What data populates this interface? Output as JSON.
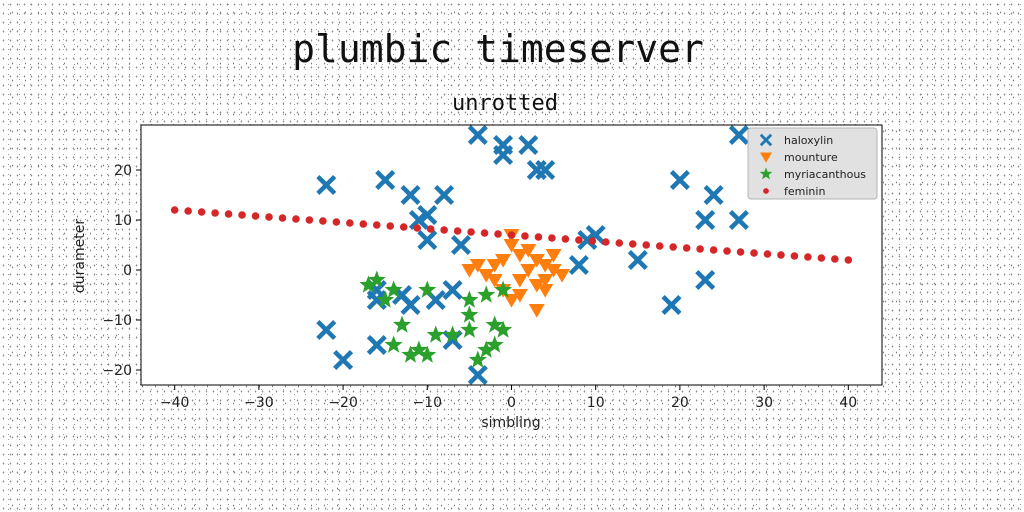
{
  "figure_title": "plumbic timeserver",
  "chart_data": {
    "type": "scatter",
    "title": "unrotted",
    "xlabel": "simbling",
    "ylabel": "durameter",
    "xlim": [
      -44,
      44
    ],
    "ylim": [
      -23,
      29
    ],
    "xticks": [
      -40,
      -30,
      -20,
      -10,
      0,
      10,
      20,
      30,
      40
    ],
    "yticks": [
      -20,
      -10,
      0,
      10,
      20
    ],
    "grid": false,
    "legend_position": "top-right",
    "series": [
      {
        "name": "haloxylin",
        "marker": "x-cross",
        "color": "#1f77b4",
        "points": [
          [
            -4,
            27
          ],
          [
            -1,
            25
          ],
          [
            2,
            25
          ],
          [
            -1,
            23
          ],
          [
            3,
            20
          ],
          [
            4,
            20
          ],
          [
            -22,
            17
          ],
          [
            -15,
            18
          ],
          [
            -12,
            15
          ],
          [
            -8,
            15
          ],
          [
            -10,
            11
          ],
          [
            -11,
            10
          ],
          [
            -10,
            6
          ],
          [
            -6,
            5
          ],
          [
            27,
            27
          ],
          [
            20,
            18
          ],
          [
            24,
            15
          ],
          [
            23,
            10
          ],
          [
            27,
            10
          ],
          [
            9,
            6
          ],
          [
            10,
            7
          ],
          [
            8,
            1
          ],
          [
            15,
            2
          ],
          [
            23,
            -2
          ],
          [
            19,
            -7
          ],
          [
            -16,
            -6
          ],
          [
            -13,
            -5
          ],
          [
            -12,
            -7
          ],
          [
            -16,
            -4
          ],
          [
            -9,
            -6
          ],
          [
            -7,
            -4
          ],
          [
            -22,
            -12
          ],
          [
            -20,
            -18
          ],
          [
            -16,
            -15
          ],
          [
            -7,
            -14
          ],
          [
            -4,
            -21
          ]
        ]
      },
      {
        "name": "mounture",
        "marker": "triangle-down",
        "color": "#ff7f0e",
        "points": [
          [
            -5,
            0
          ],
          [
            -4,
            1
          ],
          [
            -3,
            -1
          ],
          [
            -2,
            1
          ],
          [
            -1,
            2
          ],
          [
            0,
            5
          ],
          [
            0,
            7
          ],
          [
            1,
            3
          ],
          [
            1,
            -2
          ],
          [
            2,
            0
          ],
          [
            2,
            4
          ],
          [
            3,
            2
          ],
          [
            3,
            -3
          ],
          [
            4,
            -4
          ],
          [
            4,
            1
          ],
          [
            5,
            0
          ],
          [
            5,
            3
          ],
          [
            6,
            -1
          ],
          [
            -2,
            -2
          ],
          [
            -1,
            -4
          ],
          [
            0,
            -6
          ],
          [
            3,
            -8
          ],
          [
            1,
            -5
          ],
          [
            4,
            -2
          ]
        ]
      },
      {
        "name": "myriacanthous",
        "marker": "star",
        "color": "#2ca02c",
        "points": [
          [
            -17,
            -3
          ],
          [
            -16,
            -2
          ],
          [
            -15,
            -6
          ],
          [
            -14,
            -4
          ],
          [
            -13,
            -11
          ],
          [
            -14,
            -15
          ],
          [
            -12,
            -17
          ],
          [
            -11,
            -16
          ],
          [
            -10,
            -17
          ],
          [
            -9,
            -13
          ],
          [
            -10,
            -4
          ],
          [
            -7,
            -13
          ],
          [
            -5,
            -6
          ],
          [
            -5,
            -9
          ],
          [
            -5,
            -12
          ],
          [
            -3,
            -5
          ],
          [
            -2,
            -11
          ],
          [
            -1,
            -12
          ],
          [
            -1,
            -4
          ],
          [
            -3,
            -16
          ],
          [
            -2,
            -15
          ],
          [
            -4,
            -18
          ]
        ]
      },
      {
        "name": "feminin",
        "marker": "dot",
        "color": "#d62728",
        "line": {
          "x_start": -40,
          "x_end": 40,
          "y_start": 12,
          "y_end": 2,
          "count": 51
        }
      }
    ]
  }
}
